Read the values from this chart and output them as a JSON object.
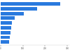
{
  "values": [
    270,
    165,
    105,
    62,
    52,
    48,
    44,
    41,
    37
  ],
  "bar_color": "#2a7ade",
  "background_color": "#ffffff",
  "xlim": [
    0,
    310
  ],
  "bar_height": 0.72,
  "axis_tick_color": "#555555",
  "axis_line_color": "#cccccc",
  "xticks": [
    0,
    100,
    200,
    300
  ]
}
